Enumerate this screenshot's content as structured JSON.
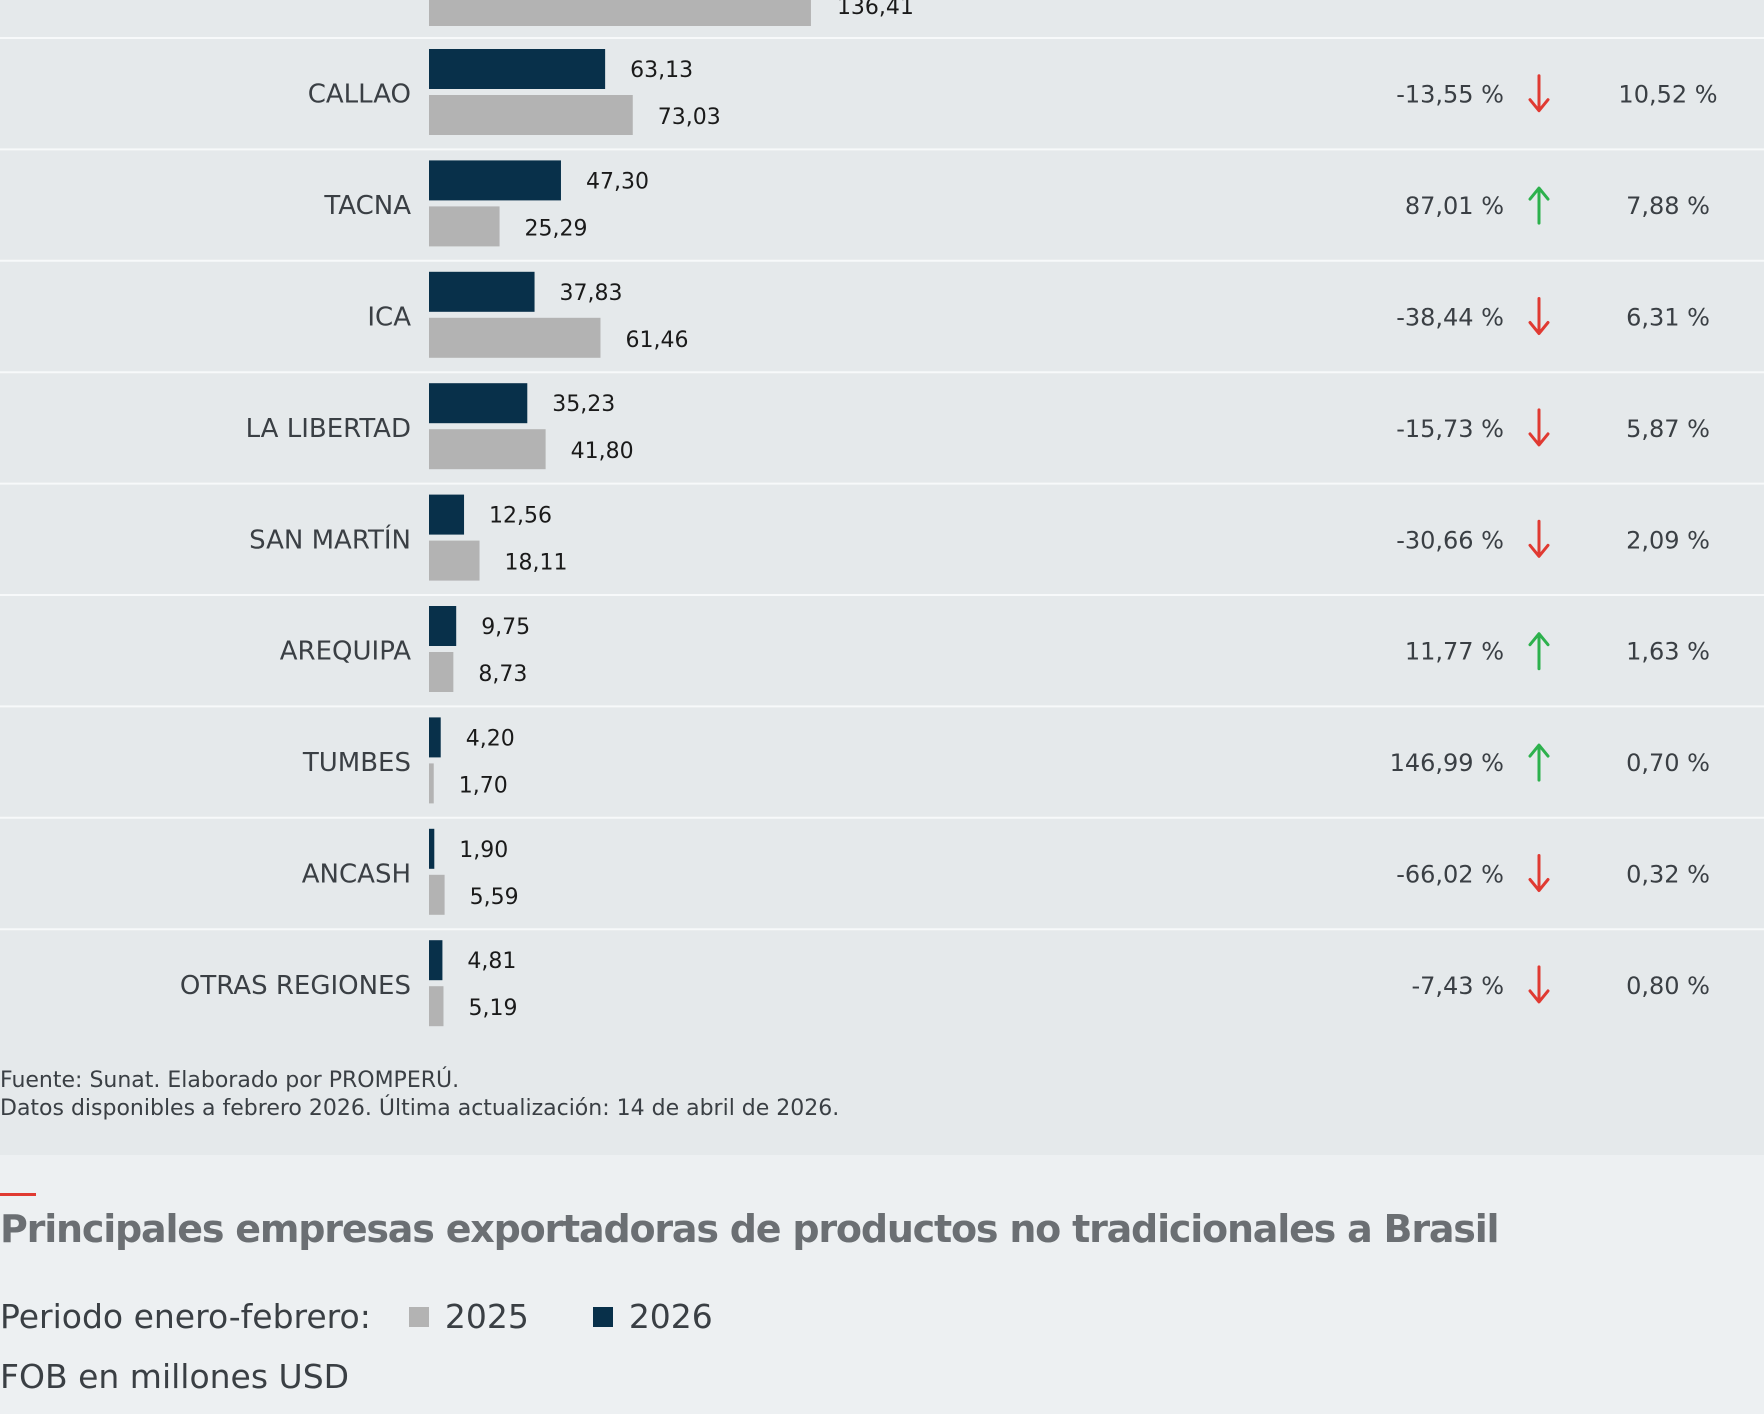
{
  "chart_data": {
    "type": "bar",
    "orientation": "horizontal",
    "categories": [
      "CALLAO",
      "TACNA",
      "ICA",
      "LA LIBERTAD",
      "SAN MARTÍN",
      "AREQUIPA",
      "TUMBES",
      "ANCASH",
      "OTRAS REGIONES"
    ],
    "series": [
      {
        "name": "2026",
        "values": [
          63.13,
          47.3,
          37.83,
          35.23,
          12.56,
          9.75,
          4.2,
          1.9,
          4.81
        ],
        "labels": [
          "63,13",
          "47,30",
          "37,83",
          "35,23",
          "12,56",
          "9,75",
          "4,20",
          "1,90",
          "4,81"
        ]
      },
      {
        "name": "2025",
        "values": [
          73.03,
          25.29,
          61.46,
          41.8,
          18.11,
          8.73,
          1.7,
          5.59,
          5.19
        ],
        "labels": [
          "73,03",
          "25,29",
          "61,46",
          "41,80",
          "18,11",
          "8,73",
          "1,70",
          "5,59",
          "5,19"
        ]
      }
    ],
    "variation": [
      "-13,55 %",
      "87,01 %",
      "-38,44 %",
      "-15,73 %",
      "-30,66 %",
      "11,77 %",
      "146,99 %",
      "-66,02 %",
      "-7,43 %"
    ],
    "trend": [
      "down",
      "up",
      "down",
      "down",
      "down",
      "up",
      "up",
      "down",
      "down"
    ],
    "share": [
      "10,52 %",
      "7,88 %",
      "6,31 %",
      "5,87 %",
      "2,09 %",
      "1,63 %",
      "0,70 %",
      "0,32 %",
      "0,80 %"
    ],
    "partial_top_row": {
      "value": 136.41,
      "label": "136,41"
    },
    "colors": {
      "2026": "#08304a",
      "2025": "#b3b3b3",
      "up": "#2db14d",
      "down": "#e03a32"
    },
    "grid": false
  },
  "source": {
    "line1": "Fuente: Sunat. Elaborado por PROMPERÚ.",
    "line2": "Datos disponibles a febrero 2026. Última actualización: 14 de abril de 2026."
  },
  "next_section": {
    "title": "Principales empresas exportadoras de productos no tradicionales a Brasil",
    "period_label": "Periodo enero-febrero:",
    "legend_2025": "2025",
    "legend_2026": "2026",
    "unit_label": "FOB en millones USD",
    "colors": {
      "accent": "#e03a32",
      "c2025": "#b3b3b3",
      "c2026": "#08304a"
    }
  }
}
